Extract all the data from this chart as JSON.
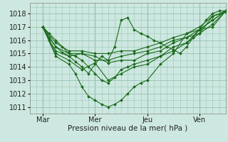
{
  "background_color": "#cde8e0",
  "grid_color": "#9dc4b8",
  "line_color": "#1a6b1a",
  "marker_color": "#1a6b1a",
  "xlabel": "Pression niveau de la mer( hPa )",
  "ylim": [
    1010.5,
    1018.8
  ],
  "yticks": [
    1011,
    1012,
    1013,
    1014,
    1015,
    1016,
    1017,
    1018
  ],
  "xlim": [
    0,
    90
  ],
  "xtick_positions": [
    6,
    30,
    54,
    78
  ],
  "xtick_labels": [
    "Mar",
    "Mer",
    "Jeu",
    "Ven"
  ],
  "vlines": [
    6,
    30,
    54,
    78
  ],
  "series": [
    [
      6,
      1017.0,
      9,
      1016.2,
      12,
      1015.5,
      15,
      1015.1,
      18,
      1014.8,
      21,
      1014.4,
      24,
      1014.0,
      27,
      1013.5,
      30,
      1014.2,
      33,
      1014.8,
      36,
      1014.5,
      39,
      1015.5,
      42,
      1017.5,
      45,
      1017.7,
      48,
      1016.8,
      51,
      1016.5,
      54,
      1016.3,
      57,
      1016.0,
      60,
      1015.8,
      63,
      1015.5,
      66,
      1015.3,
      69,
      1015.0,
      72,
      1015.5,
      75,
      1016.2,
      78,
      1016.8,
      81,
      1017.5,
      84,
      1018.0,
      87,
      1018.2,
      90,
      1018.2
    ],
    [
      6,
      1017.0,
      12,
      1015.0,
      18,
      1014.5,
      24,
      1013.8,
      30,
      1014.3,
      36,
      1013.0,
      42,
      1013.5,
      48,
      1014.0,
      54,
      1014.2,
      60,
      1014.8,
      66,
      1015.2,
      72,
      1015.8,
      78,
      1016.5,
      84,
      1017.8,
      90,
      1018.1
    ],
    [
      6,
      1017.0,
      9,
      1016.5,
      12,
      1016.0,
      15,
      1015.5,
      18,
      1015.0,
      21,
      1014.8,
      24,
      1014.5,
      27,
      1014.0,
      30,
      1013.5,
      33,
      1013.0,
      36,
      1012.8,
      39,
      1013.2,
      42,
      1013.8,
      45,
      1014.0,
      48,
      1014.2,
      54,
      1014.5,
      60,
      1014.8,
      66,
      1015.5,
      72,
      1015.8,
      78,
      1016.8,
      84,
      1017.5,
      90,
      1018.2
    ],
    [
      6,
      1017.0,
      12,
      1014.8,
      18,
      1014.2,
      21,
      1013.5,
      24,
      1012.5,
      27,
      1011.8,
      30,
      1011.5,
      33,
      1011.2,
      36,
      1011.0,
      39,
      1011.2,
      42,
      1011.5,
      45,
      1012.0,
      48,
      1012.5,
      51,
      1012.8,
      54,
      1013.0,
      60,
      1014.2,
      66,
      1015.0,
      72,
      1016.5,
      78,
      1017.0,
      84,
      1017.8,
      90,
      1018.2
    ],
    [
      6,
      1017.0,
      9,
      1016.0,
      12,
      1015.2,
      18,
      1014.8,
      24,
      1015.0,
      30,
      1014.8,
      36,
      1014.3,
      42,
      1014.5,
      48,
      1014.5,
      54,
      1015.0,
      60,
      1015.2,
      66,
      1015.8,
      72,
      1016.2,
      78,
      1016.8,
      84,
      1017.5,
      90,
      1018.2
    ],
    [
      6,
      1017.0,
      12,
      1015.5,
      18,
      1015.0,
      24,
      1015.0,
      30,
      1014.5,
      36,
      1014.5,
      42,
      1014.8,
      48,
      1015.0,
      54,
      1015.2,
      60,
      1015.5,
      66,
      1016.0,
      72,
      1016.2,
      78,
      1016.5,
      84,
      1017.2,
      90,
      1018.2
    ],
    [
      6,
      1017.0,
      12,
      1015.8,
      18,
      1015.2,
      24,
      1015.2,
      30,
      1015.0,
      36,
      1015.0,
      42,
      1015.2,
      48,
      1015.2,
      54,
      1015.5,
      60,
      1015.8,
      66,
      1016.2,
      72,
      1016.5,
      78,
      1016.8,
      84,
      1017.0,
      90,
      1018.2
    ]
  ]
}
